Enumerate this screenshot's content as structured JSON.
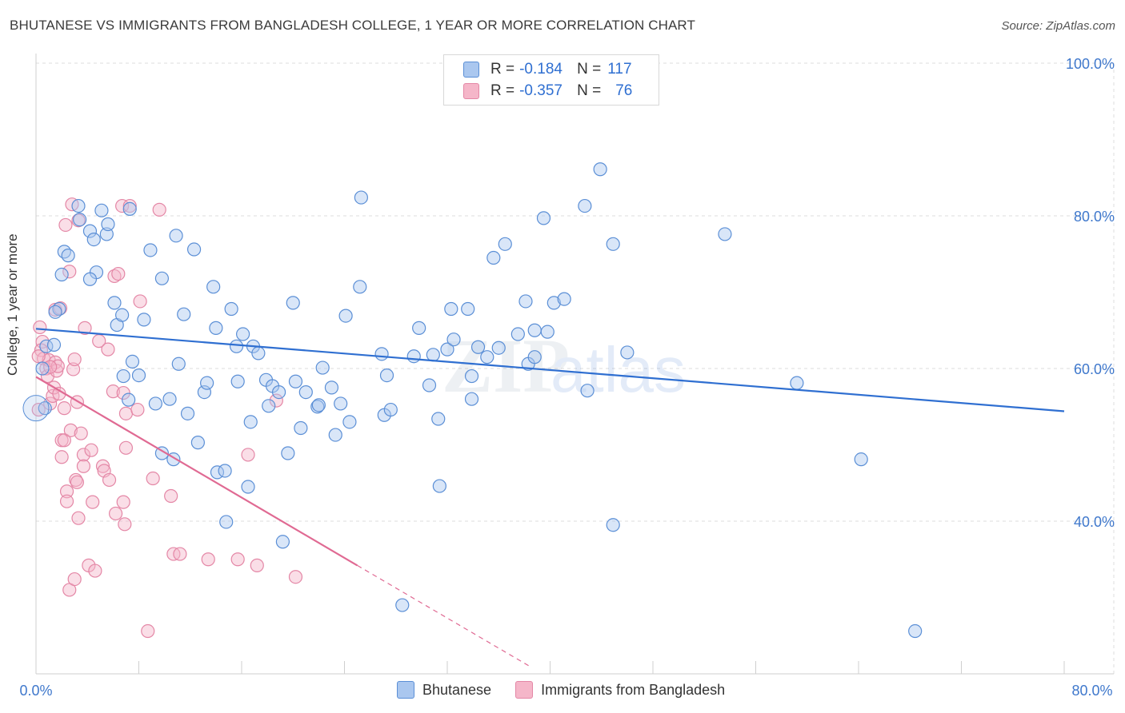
{
  "header": {
    "title": "BHUTANESE VS IMMIGRANTS FROM BANGLADESH COLLEGE, 1 YEAR OR MORE CORRELATION CHART",
    "source": "Source: ZipAtlas.com"
  },
  "legend_top": {
    "rows": [
      {
        "r_label": "R =",
        "r_value": "-0.184",
        "n_label": "N =",
        "n_value": "117"
      },
      {
        "r_label": "R =",
        "r_value": "-0.357",
        "n_label": "N =",
        "n_value": "76"
      }
    ]
  },
  "watermark": {
    "zip": "ZIP",
    "atlas": "atlas"
  },
  "colors": {
    "blue_fill": "#aac7ef",
    "blue_stroke": "#5b8fd6",
    "blue_line": "#2f6fd1",
    "pink_fill": "#f5b6c9",
    "pink_stroke": "#e487a6",
    "pink_line": "#e06a93",
    "axis_text": "#3f78cc",
    "grid": "#dcdcdc"
  },
  "chart_data": {
    "type": "scatter",
    "title": "BHUTANESE VS IMMIGRANTS FROM BANGLADESH COLLEGE, 1 YEAR OR MORE CORRELATION CHART",
    "xlabel": "",
    "ylabel": "College, 1 year or more",
    "xlim": [
      0,
      80
    ],
    "ylim": [
      20,
      100
    ],
    "x_tick_labels": [
      "0.0%",
      "80.0%"
    ],
    "y_tick_labels": [
      "100.0%",
      "80.0%",
      "60.0%",
      "40.0%"
    ],
    "y_ticks": [
      100,
      80,
      60,
      40
    ],
    "grid": true,
    "legend": "bottom-center",
    "series": [
      {
        "name": "Bhutanese",
        "r": -0.184,
        "n": 117,
        "trend": {
          "x": [
            0,
            80
          ],
          "y": [
            65.2,
            54.4
          ]
        },
        "points": [
          [
            2.2,
            75.3
          ],
          [
            2.0,
            72.3
          ],
          [
            1.8,
            67.8
          ],
          [
            1.5,
            67.4
          ],
          [
            0.8,
            62.9
          ],
          [
            1.4,
            63.1
          ],
          [
            0.5,
            60.0
          ],
          [
            0.7,
            54.8
          ],
          [
            2.5,
            74.8
          ],
          [
            3.3,
            81.3
          ],
          [
            3.4,
            79.5
          ],
          [
            4.2,
            78.0
          ],
          [
            4.5,
            76.9
          ],
          [
            4.7,
            72.6
          ],
          [
            4.2,
            71.7
          ],
          [
            5.1,
            80.7
          ],
          [
            5.5,
            77.6
          ],
          [
            5.6,
            78.9
          ],
          [
            6.1,
            68.6
          ],
          [
            6.3,
            65.7
          ],
          [
            6.7,
            67.0
          ],
          [
            6.8,
            59.0
          ],
          [
            7.2,
            55.9
          ],
          [
            7.5,
            60.9
          ],
          [
            7.3,
            80.9
          ],
          [
            8.0,
            59.1
          ],
          [
            8.4,
            66.4
          ],
          [
            8.9,
            75.5
          ],
          [
            9.3,
            55.4
          ],
          [
            9.8,
            71.8
          ],
          [
            9.8,
            48.9
          ],
          [
            10.4,
            56.0
          ],
          [
            10.7,
            48.1
          ],
          [
            10.9,
            77.4
          ],
          [
            11.1,
            60.6
          ],
          [
            11.5,
            67.1
          ],
          [
            11.8,
            54.1
          ],
          [
            12.3,
            75.6
          ],
          [
            12.6,
            50.3
          ],
          [
            13.1,
            56.9
          ],
          [
            13.3,
            58.1
          ],
          [
            13.8,
            70.7
          ],
          [
            14.0,
            65.3
          ],
          [
            14.1,
            46.4
          ],
          [
            14.7,
            46.6
          ],
          [
            14.8,
            39.9
          ],
          [
            15.2,
            67.8
          ],
          [
            15.6,
            62.9
          ],
          [
            15.7,
            58.3
          ],
          [
            16.1,
            64.5
          ],
          [
            16.5,
            44.5
          ],
          [
            16.7,
            53.0
          ],
          [
            16.9,
            62.9
          ],
          [
            17.3,
            62.0
          ],
          [
            17.9,
            58.5
          ],
          [
            18.1,
            55.1
          ],
          [
            18.4,
            57.7
          ],
          [
            18.9,
            56.9
          ],
          [
            19.2,
            37.3
          ],
          [
            19.6,
            48.9
          ],
          [
            20.0,
            68.6
          ],
          [
            20.2,
            58.3
          ],
          [
            20.6,
            52.2
          ],
          [
            21.0,
            56.9
          ],
          [
            21.9,
            55.0
          ],
          [
            22.0,
            55.2
          ],
          [
            22.3,
            60.1
          ],
          [
            23.0,
            57.5
          ],
          [
            23.3,
            51.3
          ],
          [
            23.7,
            55.4
          ],
          [
            24.1,
            66.9
          ],
          [
            24.4,
            53.0
          ],
          [
            25.2,
            70.7
          ],
          [
            25.3,
            82.4
          ],
          [
            26.9,
            61.9
          ],
          [
            27.1,
            53.9
          ],
          [
            27.3,
            59.1
          ],
          [
            27.6,
            54.6
          ],
          [
            28.5,
            29.0
          ],
          [
            29.4,
            61.6
          ],
          [
            29.8,
            65.3
          ],
          [
            30.6,
            57.8
          ],
          [
            30.9,
            61.8
          ],
          [
            31.3,
            53.4
          ],
          [
            31.4,
            44.6
          ],
          [
            32.0,
            62.5
          ],
          [
            32.3,
            67.8
          ],
          [
            32.5,
            63.8
          ],
          [
            33.6,
            67.8
          ],
          [
            33.9,
            59.0
          ],
          [
            33.9,
            56.0
          ],
          [
            34.4,
            62.8
          ],
          [
            35.1,
            61.5
          ],
          [
            35.6,
            74.5
          ],
          [
            36.0,
            62.7
          ],
          [
            36.5,
            76.3
          ],
          [
            37.5,
            64.5
          ],
          [
            38.1,
            68.8
          ],
          [
            38.3,
            60.6
          ],
          [
            38.8,
            65.0
          ],
          [
            38.8,
            61.5
          ],
          [
            39.5,
            79.7
          ],
          [
            39.8,
            64.8
          ],
          [
            40.3,
            68.6
          ],
          [
            41.1,
            69.1
          ],
          [
            42.7,
            81.3
          ],
          [
            42.9,
            57.1
          ],
          [
            43.9,
            86.1
          ],
          [
            44.9,
            76.3
          ],
          [
            44.9,
            39.5
          ],
          [
            46.0,
            62.1
          ],
          [
            53.6,
            77.6
          ],
          [
            59.2,
            58.1
          ],
          [
            64.2,
            48.1
          ],
          [
            68.4,
            25.6
          ]
        ]
      },
      {
        "name": "Immigrants from Bangladesh",
        "r": -0.357,
        "n": 76,
        "trend": {
          "x": [
            0,
            25
          ],
          "y": [
            58.9,
            34.2
          ]
        },
        "trend_dashed": {
          "x": [
            25,
            38.4
          ],
          "y": [
            34.2,
            21.0
          ]
        },
        "points": [
          [
            0.3,
            65.4
          ],
          [
            0.5,
            63.5
          ],
          [
            0.4,
            62.4
          ],
          [
            0.6,
            61.3
          ],
          [
            0.8,
            60.0
          ],
          [
            0.9,
            59.0
          ],
          [
            1.0,
            61.1
          ],
          [
            1.1,
            55.4
          ],
          [
            1.3,
            56.4
          ],
          [
            1.4,
            57.5
          ],
          [
            1.5,
            67.7
          ],
          [
            1.5,
            60.8
          ],
          [
            1.6,
            59.7
          ],
          [
            1.7,
            60.3
          ],
          [
            1.8,
            56.7
          ],
          [
            2.0,
            50.6
          ],
          [
            2.0,
            48.4
          ],
          [
            2.2,
            54.8
          ],
          [
            2.2,
            50.6
          ],
          [
            2.3,
            78.8
          ],
          [
            2.4,
            43.9
          ],
          [
            2.4,
            42.6
          ],
          [
            2.6,
            31.0
          ],
          [
            2.6,
            72.7
          ],
          [
            2.7,
            51.9
          ],
          [
            2.8,
            81.5
          ],
          [
            2.9,
            59.9
          ],
          [
            3.0,
            61.2
          ],
          [
            3.0,
            32.4
          ],
          [
            3.1,
            45.4
          ],
          [
            3.2,
            55.6
          ],
          [
            3.2,
            45.1
          ],
          [
            3.3,
            40.4
          ],
          [
            3.3,
            79.4
          ],
          [
            3.5,
            51.5
          ],
          [
            3.7,
            48.7
          ],
          [
            3.7,
            47.2
          ],
          [
            3.8,
            65.3
          ],
          [
            4.1,
            34.2
          ],
          [
            4.3,
            49.3
          ],
          [
            4.4,
            42.5
          ],
          [
            4.6,
            33.5
          ],
          [
            4.9,
            63.6
          ],
          [
            5.2,
            47.2
          ],
          [
            5.3,
            46.6
          ],
          [
            5.6,
            62.5
          ],
          [
            5.7,
            45.4
          ],
          [
            6.0,
            57.0
          ],
          [
            6.1,
            72.1
          ],
          [
            6.2,
            41.0
          ],
          [
            6.4,
            72.4
          ],
          [
            6.7,
            81.3
          ],
          [
            6.8,
            42.5
          ],
          [
            6.8,
            56.8
          ],
          [
            6.9,
            39.6
          ],
          [
            7.0,
            49.6
          ],
          [
            7.0,
            54.1
          ],
          [
            7.3,
            81.3
          ],
          [
            7.9,
            54.6
          ],
          [
            8.1,
            68.8
          ],
          [
            8.7,
            25.6
          ],
          [
            9.1,
            45.6
          ],
          [
            9.6,
            80.8
          ],
          [
            10.5,
            43.3
          ],
          [
            10.7,
            35.7
          ],
          [
            11.2,
            35.7
          ],
          [
            13.4,
            35.0
          ],
          [
            15.7,
            35.0
          ],
          [
            16.5,
            48.7
          ],
          [
            17.2,
            34.2
          ],
          [
            18.7,
            55.8
          ],
          [
            20.2,
            32.7
          ],
          [
            0.2,
            54.6
          ],
          [
            0.2,
            61.6
          ],
          [
            1.1,
            60.2
          ],
          [
            1.9,
            67.9
          ]
        ]
      }
    ]
  }
}
